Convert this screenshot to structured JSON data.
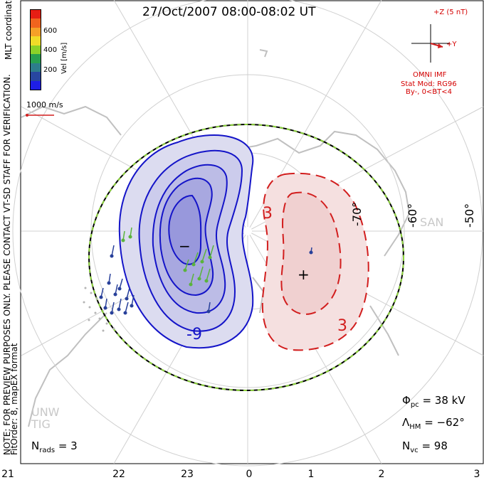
{
  "title": "27/Oct/2007 08:00-08:02 UT",
  "mlt_ticks": [
    "21",
    "22",
    "23",
    "0",
    "1",
    "2",
    "3"
  ],
  "left_note_1": "NOTE: FOR PREVIEW PURPOSES ONLY. PLEASE CONTACT VT-SD STAFF FOR VERIFICATION.",
  "left_note_2": "FitOrder: 8, mapEX format",
  "coord_label": "MLT coordinates",
  "colorbar": {
    "label": "Vel [m/s]",
    "ticks": [
      "600",
      "400",
      "200"
    ],
    "colors": [
      "#e61e14",
      "#f0641e",
      "#f5a028",
      "#f0dc28",
      "#8cd228",
      "#28a050",
      "#2d7d8c",
      "#2846a0",
      "#1e1ee6"
    ]
  },
  "vector_scale": "1000 m/s",
  "imf": {
    "z_label": "+Z (5 nT)",
    "y_label": "+Y",
    "source": "OMNI IMF",
    "model": "Stat Mod: RG96",
    "condition": "By-, 0<BT<4"
  },
  "lat_labels": [
    "-70°",
    "-60°",
    "-50°"
  ],
  "stations": [
    "SAN",
    "UNW",
    "TIG"
  ],
  "contour_labels": [
    "-9",
    "3",
    "3"
  ],
  "centers": [
    "−",
    "+"
  ],
  "stats": {
    "phi_symbol": "Φ",
    "phi_sub": "pc",
    "phi_value": "=  38 kV",
    "lambda_symbol": "Λ",
    "lambda_sub": "HM",
    "lambda_value": "=  −62°",
    "nvc_symbol": "N",
    "nvc_sub": "vc",
    "nvc_value": "=  98",
    "nrads_symbol": "N",
    "nrads_sub": "rads",
    "nrads_value": "=  3"
  },
  "colors": {
    "negative": "#1414c8",
    "positive": "#d21e1e",
    "boundary_green": "#8cd23c",
    "coast": "#c0c0c0"
  }
}
